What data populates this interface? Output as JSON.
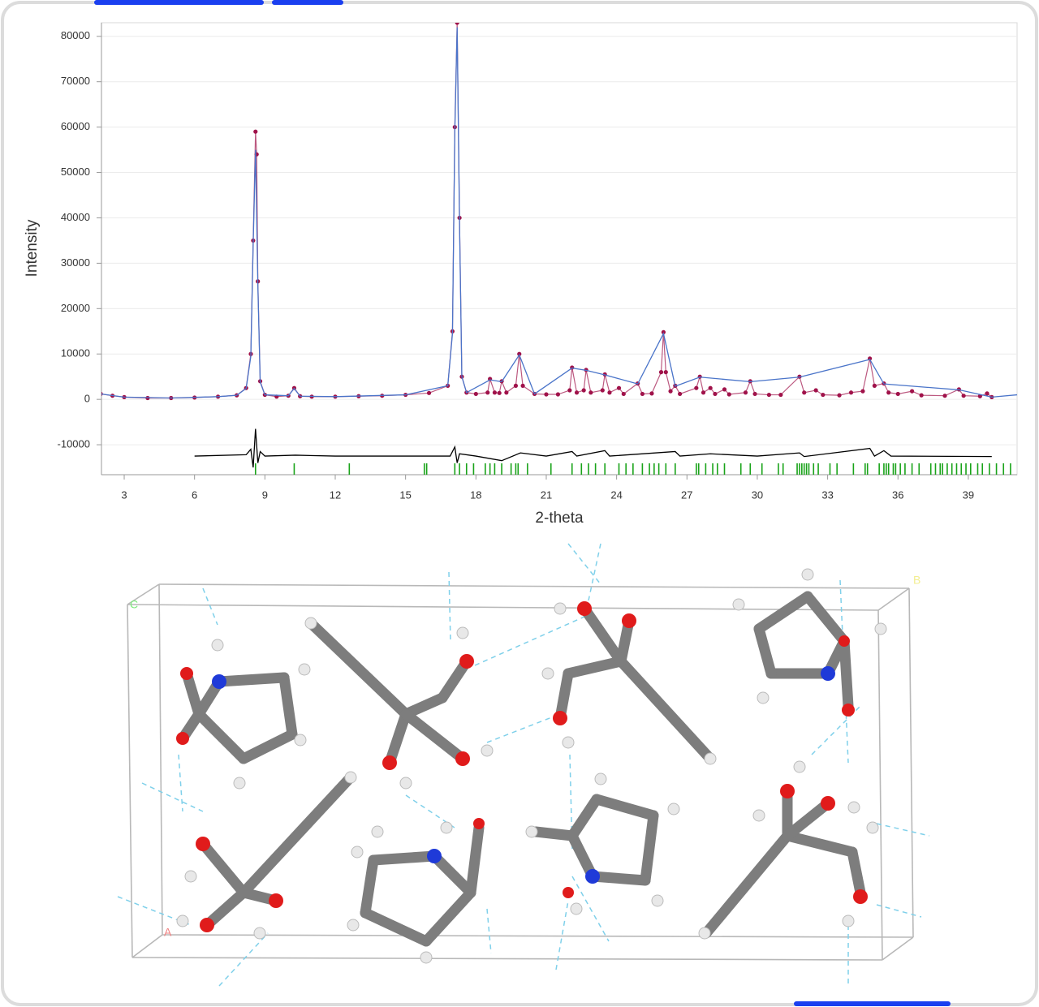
{
  "chart_data": {
    "type": "line",
    "xlabel": "2-theta",
    "ylabel": "Intensity",
    "xlim": [
      2.03,
      41.08
    ],
    "xticks": [
      3,
      6,
      9,
      12,
      15,
      18,
      21,
      24,
      27,
      30,
      33,
      36,
      39
    ],
    "ylim": [
      -16600,
      83000
    ],
    "yticks": [
      -10000,
      0,
      10000,
      20000,
      30000,
      40000,
      50000,
      60000,
      70000,
      80000
    ],
    "grid": true,
    "series": [
      {
        "style": "markers",
        "color": "#a0124a",
        "x": [
          2.0,
          2.5,
          3,
          4,
          5,
          6,
          7,
          7.8,
          8.2,
          8.4,
          8.5,
          8.6,
          8.65,
          8.7,
          8.8,
          9.0,
          9.5,
          10.0,
          10.25,
          10.5,
          11,
          12,
          13,
          14,
          15,
          16,
          16.8,
          17.0,
          17.1,
          17.2,
          17.3,
          17.4,
          17.6,
          18.0,
          18.5,
          18.6,
          18.8,
          19.0,
          19.1,
          19.3,
          19.7,
          19.85,
          20.0,
          20.5,
          21.0,
          21.5,
          22.0,
          22.1,
          22.3,
          22.6,
          22.7,
          22.9,
          23.4,
          23.5,
          23.7,
          24.1,
          24.3,
          24.9,
          25.1,
          25.5,
          25.9,
          26.0,
          26.1,
          26.3,
          26.5,
          26.7,
          27.4,
          27.55,
          27.7,
          28.0,
          28.2,
          28.6,
          28.8,
          29.5,
          29.7,
          29.9,
          30.5,
          31.0,
          31.8,
          32.0,
          32.5,
          32.8,
          33.5,
          34.0,
          34.5,
          34.8,
          35.0,
          35.4,
          35.6,
          36.0,
          36.6,
          37.0,
          38.0,
          38.6,
          38.8,
          39.5,
          39.8,
          40.0
        ],
        "values": [
          1200,
          800,
          500,
          300,
          300,
          400,
          600,
          900,
          2500,
          10000,
          35000,
          59000,
          54000,
          26000,
          4000,
          1000,
          600,
          800,
          2500,
          700,
          600,
          600,
          700,
          800,
          1000,
          1400,
          3000,
          15000,
          60000,
          83000,
          40000,
          5000,
          1500,
          1200,
          1500,
          4500,
          1500,
          1400,
          4000,
          1500,
          3000,
          10000,
          3000,
          1200,
          1100,
          1100,
          2000,
          7000,
          1500,
          2000,
          6500,
          1500,
          2000,
          5500,
          1500,
          2500,
          1200,
          3500,
          1200,
          1300,
          6000,
          14800,
          6000,
          1800,
          3000,
          1200,
          2500,
          5000,
          1500,
          2500,
          1200,
          2200,
          1100,
          1500,
          4000,
          1200,
          1000,
          1000,
          5000,
          1500,
          2000,
          1000,
          900,
          1500,
          1800,
          9000,
          3000,
          3500,
          1500,
          1200,
          1800,
          900,
          800,
          2200,
          800,
          700,
          1300,
          500
        ]
      },
      {
        "style": "line",
        "color": "#4a74c9",
        "x": [
          2.0,
          3,
          5,
          7,
          7.8,
          8.2,
          8.4,
          8.5,
          8.6,
          8.7,
          8.8,
          9.0,
          10.0,
          10.25,
          10.5,
          12,
          15,
          16.8,
          17.0,
          17.1,
          17.2,
          17.3,
          17.4,
          17.6,
          18.6,
          19.1,
          19.85,
          20.5,
          22.1,
          22.7,
          23.5,
          24.9,
          26.0,
          26.5,
          27.55,
          29.7,
          31.8,
          34.8,
          35.4,
          38.6,
          40.0,
          41.08
        ],
        "values": [
          1200,
          500,
          300,
          600,
          900,
          2400,
          9500,
          34000,
          55000,
          25000,
          3800,
          1000,
          800,
          2400,
          700,
          600,
          1000,
          3000,
          14500,
          59000,
          82000,
          39000,
          5000,
          1500,
          4300,
          3900,
          9800,
          1200,
          6900,
          6400,
          5400,
          3400,
          14500,
          2900,
          4900,
          3900,
          4900,
          8800,
          3400,
          2100,
          500,
          1000
        ]
      },
      {
        "style": "line",
        "color": "#000000",
        "x": [
          6,
          8.2,
          8.4,
          8.5,
          8.6,
          8.7,
          8.8,
          9.0,
          10.3,
          12,
          16.9,
          17.1,
          17.2,
          17.3,
          18,
          19.1,
          19.9,
          21,
          22.1,
          22.3,
          23.5,
          23.7,
          26.5,
          26.7,
          28,
          30,
          31.8,
          32,
          34.8,
          35,
          35.4,
          35.7,
          40
        ],
        "values": [
          -12500,
          -12200,
          -11000,
          -15000,
          -6500,
          -14000,
          -11500,
          -12500,
          -12300,
          -12500,
          -12500,
          -10500,
          -14000,
          -12000,
          -12500,
          -13500,
          -11800,
          -12500,
          -11500,
          -12500,
          -11300,
          -12500,
          -11500,
          -12500,
          -12000,
          -12500,
          -11800,
          -12600,
          -10800,
          -12500,
          -11300,
          -12500,
          -12600
        ]
      }
    ],
    "reflections_color": "#19a319",
    "reflections": [
      8.6,
      10.25,
      12.6,
      15.8,
      15.9,
      17.1,
      17.3,
      17.6,
      17.9,
      18.4,
      18.6,
      18.8,
      19.1,
      19.5,
      19.7,
      19.8,
      20.2,
      21.2,
      22.1,
      22.5,
      22.8,
      23.1,
      23.5,
      24.1,
      24.4,
      24.7,
      25.1,
      25.4,
      25.6,
      25.8,
      26.1,
      26.5,
      27.4,
      27.5,
      27.8,
      28.1,
      28.3,
      28.6,
      29.3,
      29.7,
      30.2,
      30.9,
      31.1,
      31.7,
      31.8,
      31.9,
      32.0,
      32.1,
      32.2,
      32.4,
      32.6,
      33.1,
      33.4,
      34.1,
      34.6,
      34.7,
      35.2,
      35.4,
      35.5,
      35.6,
      35.8,
      35.9,
      36.1,
      36.3,
      36.6,
      36.9,
      37.4,
      37.6,
      37.8,
      37.9,
      38.1,
      38.3,
      38.5,
      38.7,
      38.9,
      39.1,
      39.4,
      39.6,
      39.9,
      40.2,
      40.5,
      40.8
    ]
  },
  "structure": {
    "axis_labels": [
      "C",
      "B",
      "A"
    ]
  }
}
